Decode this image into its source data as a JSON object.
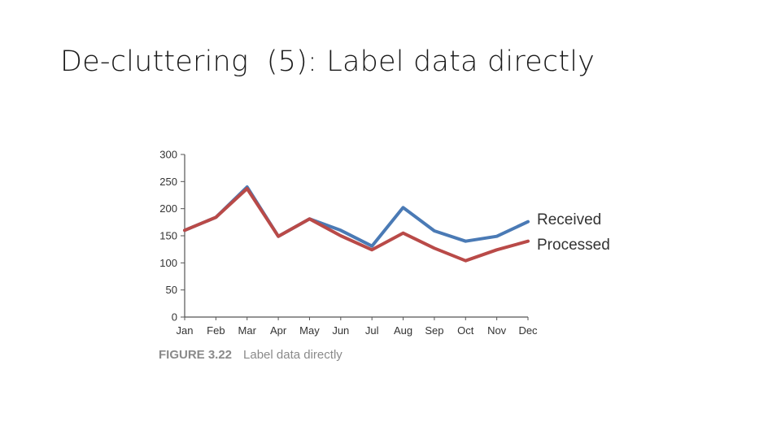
{
  "slide": {
    "title": "De-cluttering  (5): Label data directly"
  },
  "caption": {
    "figure": "FIGURE 3.22",
    "text": "Label data directly"
  },
  "chart_data": {
    "type": "line",
    "categories": [
      "Jan",
      "Feb",
      "Mar",
      "Apr",
      "May",
      "Jun",
      "Jul",
      "Aug",
      "Sep",
      "Oct",
      "Nov",
      "Dec"
    ],
    "series": [
      {
        "name": "Received",
        "color": "#4a7ab5",
        "values": [
          160,
          184,
          240,
          149,
          181,
          160,
          131,
          202,
          159,
          140,
          149,
          176
        ]
      },
      {
        "name": "Processed",
        "color": "#b94a48",
        "values": [
          160,
          184,
          237,
          149,
          181,
          150,
          124,
          155,
          127,
          104,
          124,
          140
        ]
      }
    ],
    "yticks": [
      0,
      50,
      100,
      150,
      200,
      250,
      300
    ],
    "ylim": [
      0,
      300
    ],
    "title": "",
    "xlabel": "",
    "ylabel": "",
    "grid": false,
    "legend": "direct-labels-right"
  }
}
